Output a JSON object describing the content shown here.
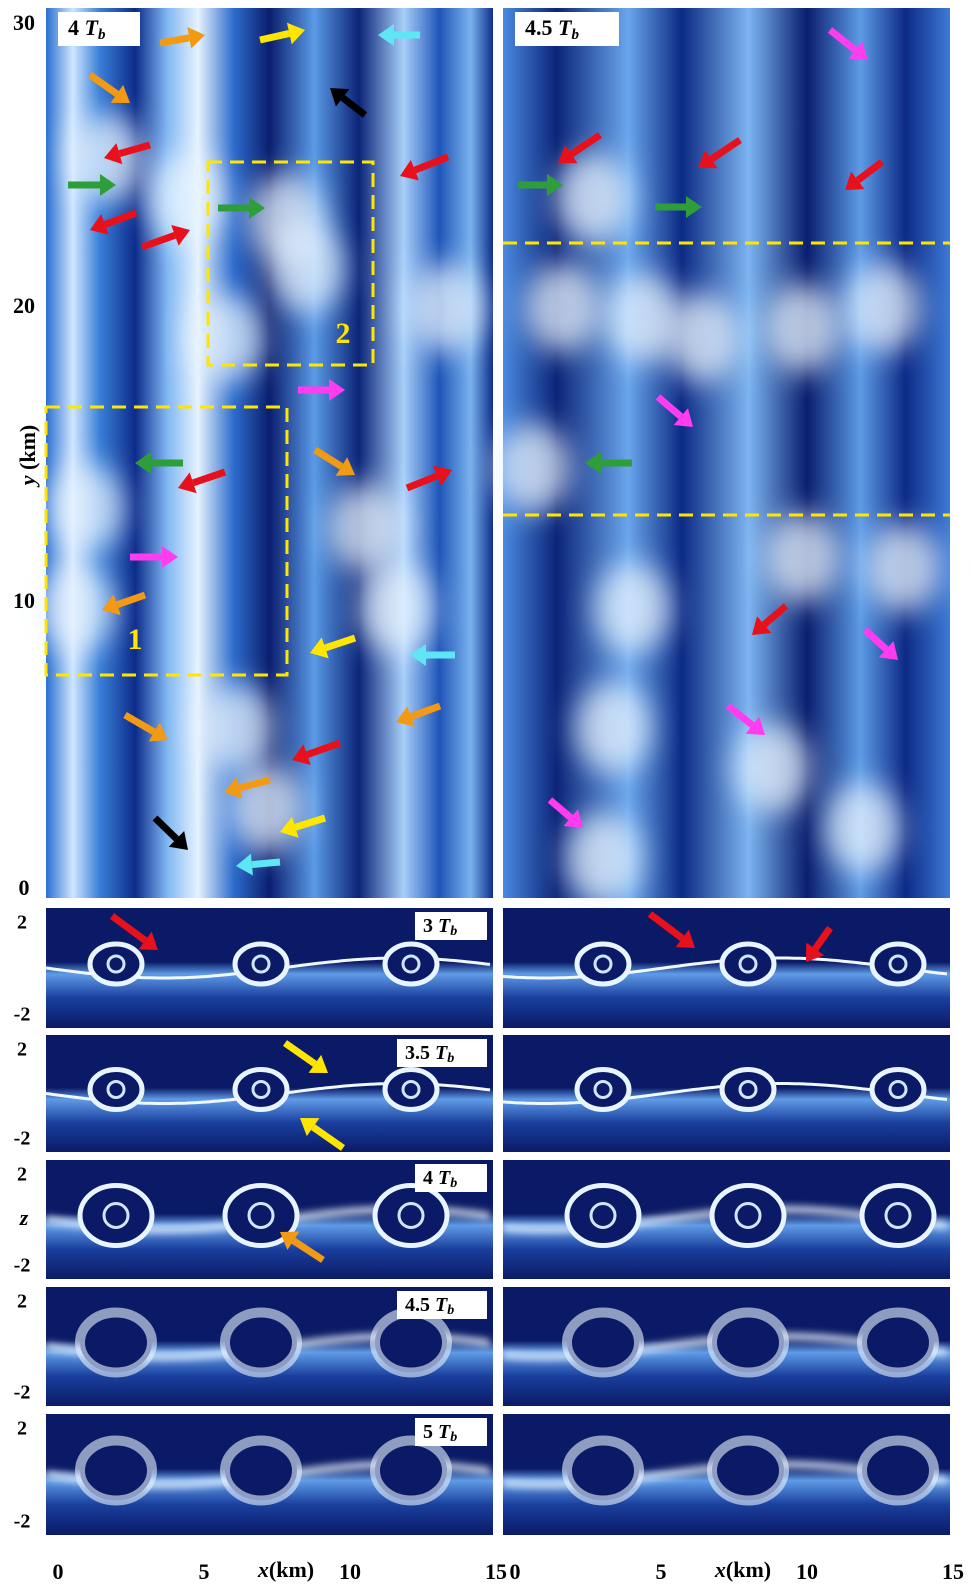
{
  "top_panels": [
    {
      "label": {
        "coef": "4",
        "var": "T",
        "sub": "b"
      },
      "boxes": [
        "1",
        "2"
      ]
    },
    {
      "label": {
        "coef": "4.5",
        "var": "T",
        "sub": "b"
      }
    }
  ],
  "strip_labels": [
    {
      "coef": "3",
      "var": "T",
      "sub": "b"
    },
    {
      "coef": "3.5",
      "var": "T",
      "sub": "b"
    },
    {
      "coef": "4",
      "var": "T",
      "sub": "b"
    },
    {
      "coef": "4.5",
      "var": "T",
      "sub": "b"
    },
    {
      "coef": "5",
      "var": "T",
      "sub": "b"
    }
  ],
  "y_axis": {
    "var": "y",
    "unit": "(km)",
    "ticks": [
      "30",
      "20",
      "10",
      "0"
    ]
  },
  "z_axis": {
    "var": "z",
    "ticks": [
      "2",
      "-2"
    ]
  },
  "x_axis": {
    "var": "x",
    "unit": "(km)",
    "ticks": [
      "0",
      "5",
      "10",
      "15"
    ]
  }
}
